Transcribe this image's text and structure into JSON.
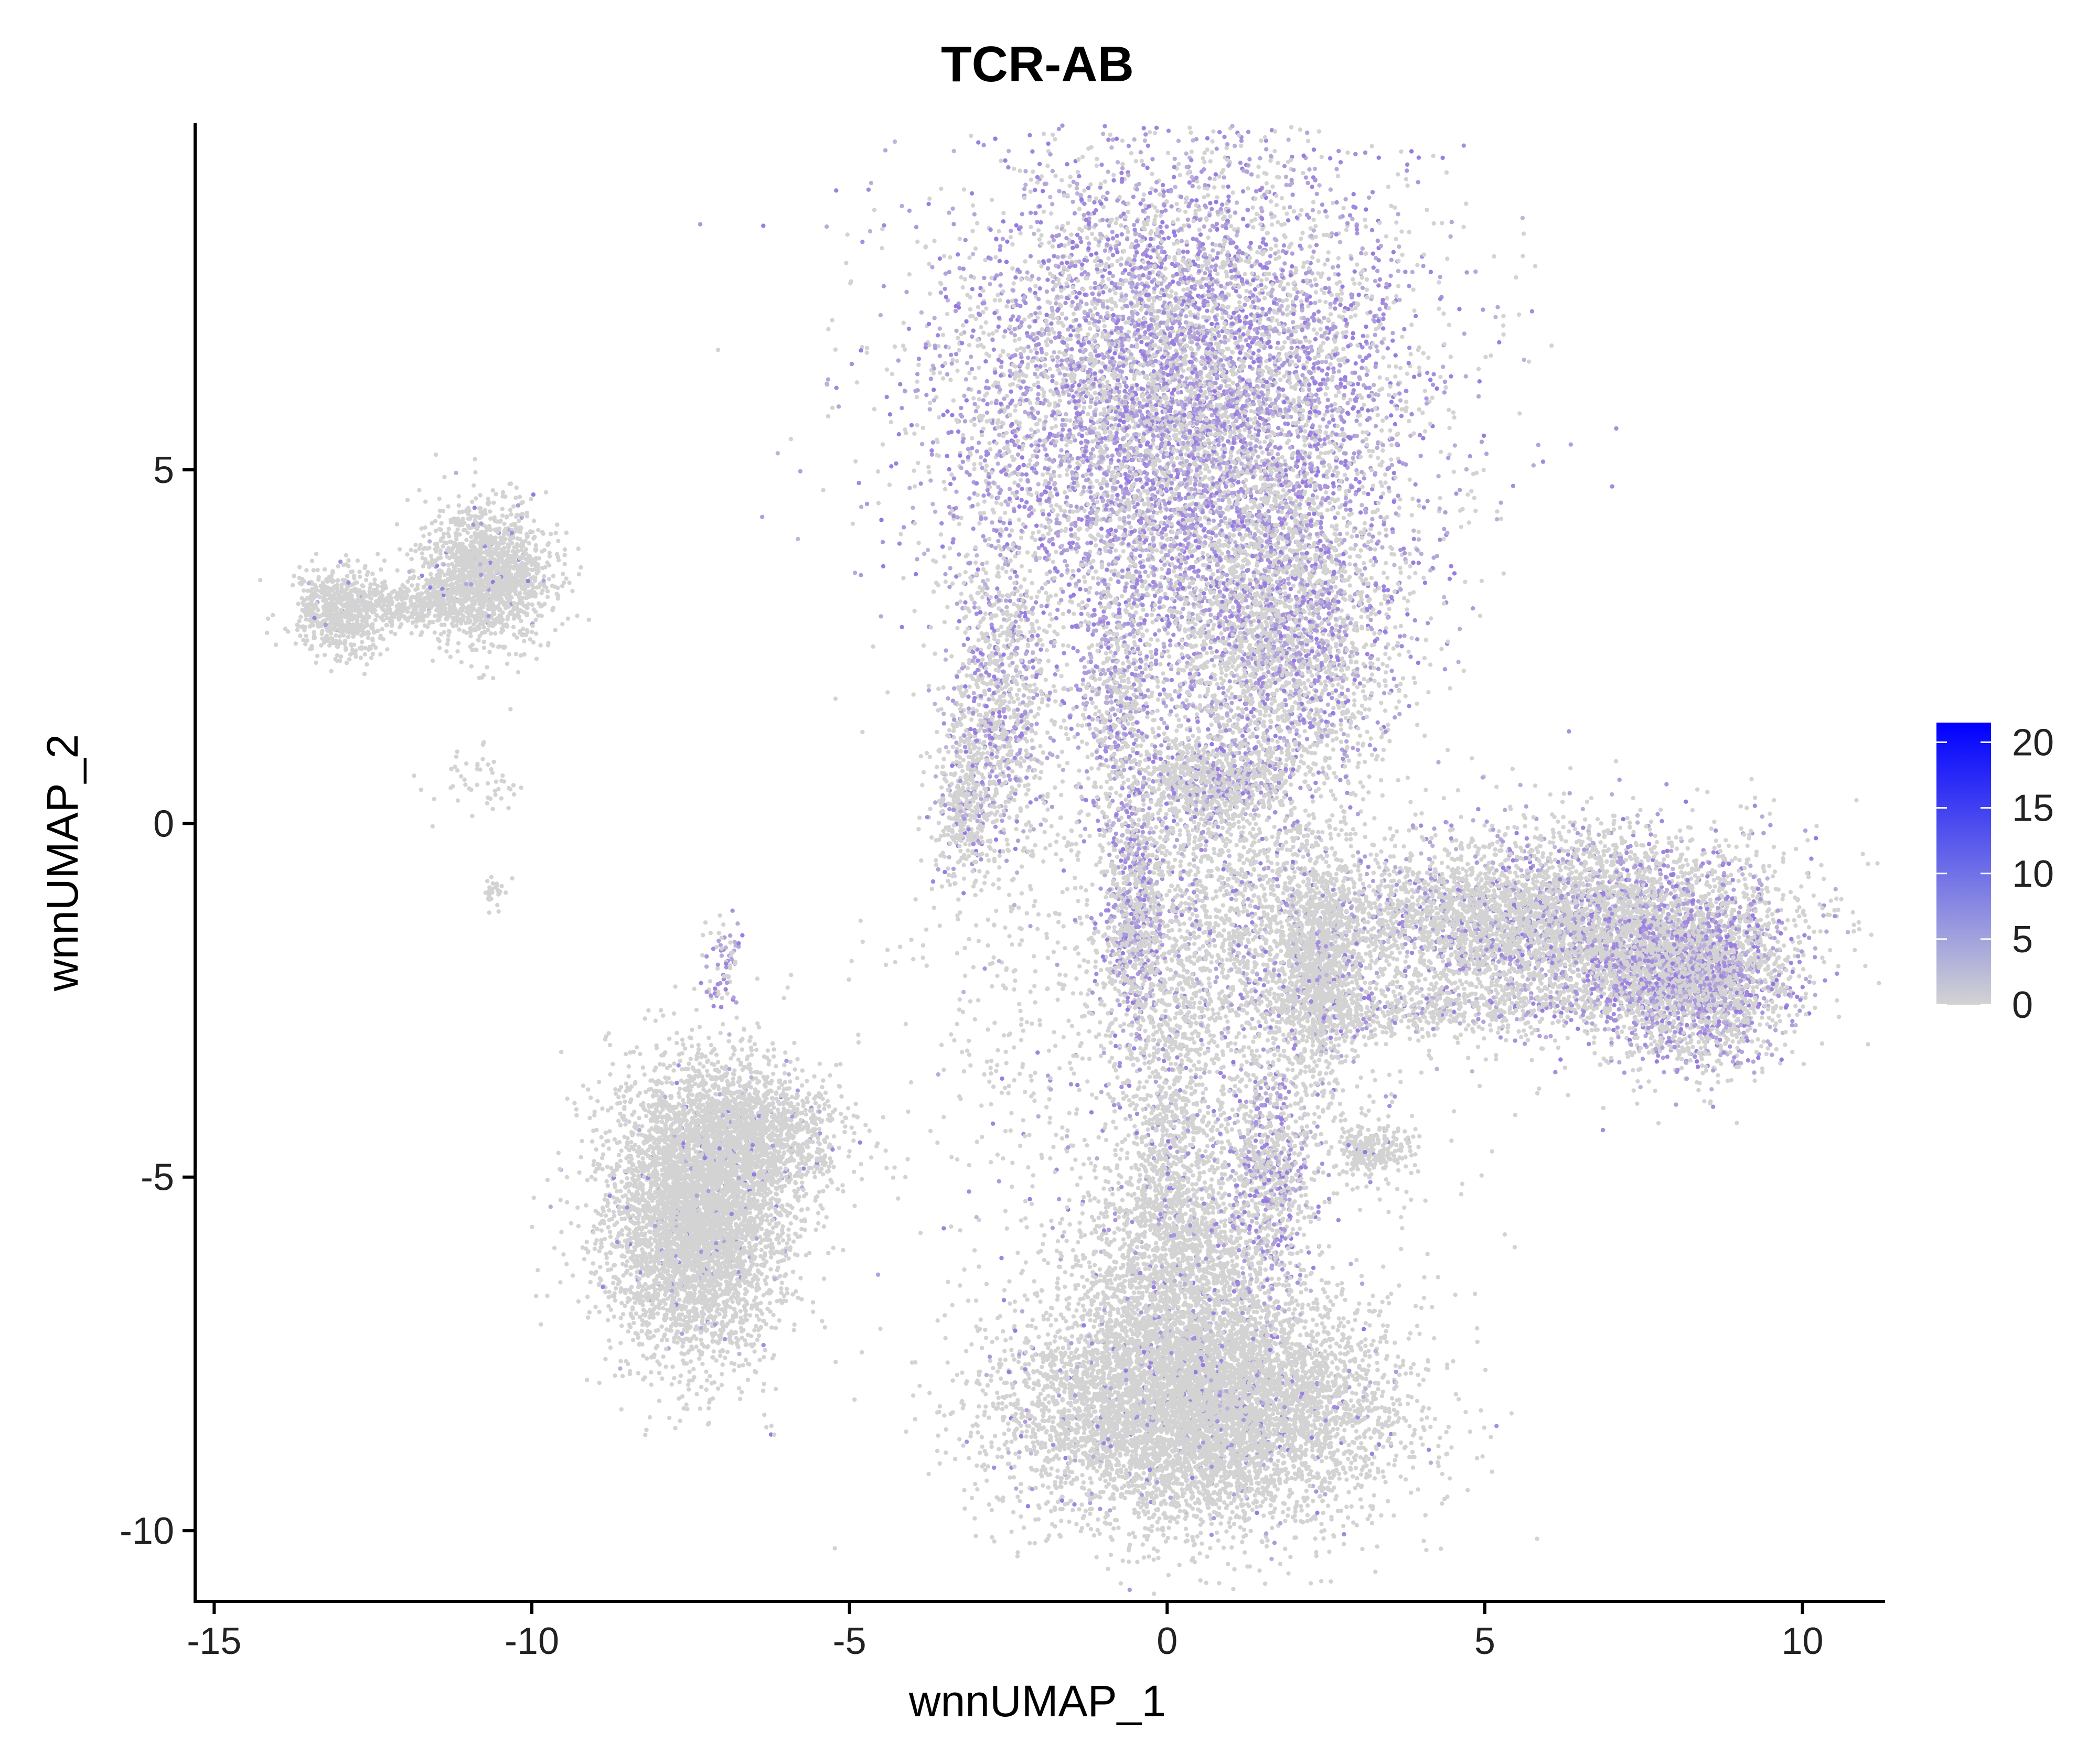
{
  "chart_data": {
    "type": "scatter",
    "title": "TCR-AB",
    "xlabel": "wnnUMAP_1",
    "ylabel": "wnnUMAP_2",
    "xlim": [
      -15.3,
      11.3
    ],
    "ylim": [
      -11.0,
      9.9
    ],
    "x_ticks": [
      -15,
      -10,
      -5,
      0,
      5,
      10
    ],
    "y_ticks": [
      -10,
      -5,
      0,
      5
    ],
    "x_tick_labels": [
      "-15",
      "-10",
      "-5",
      "0",
      "5",
      "10"
    ],
    "y_tick_labels": [
      "-10",
      "-5",
      "0",
      "5"
    ],
    "grid": false,
    "legend": {
      "placement": "right",
      "type": "colorbar",
      "min": 0,
      "max": 21.5,
      "ticks": [
        0,
        5,
        10,
        15,
        20
      ],
      "tick_labels": [
        "0",
        "5",
        "10",
        "15",
        "20"
      ],
      "color_low": "#d3d3d3",
      "color_high": "#0000ff"
    },
    "clusters": [
      {
        "cx": 0.2,
        "cy": 5.8,
        "sx": 1.8,
        "sy": 1.9,
        "n": 9000,
        "expr": 0.55
      },
      {
        "cx": 1.8,
        "cy": 2.6,
        "sx": 0.9,
        "sy": 1.2,
        "n": 2500,
        "expr": 0.35
      },
      {
        "cx": -2.6,
        "cy": 1.6,
        "sx": 0.4,
        "sy": 1.1,
        "n": 900,
        "expr": 0.35
      },
      {
        "cx": -3.2,
        "cy": 0.3,
        "sx": 0.25,
        "sy": 0.6,
        "n": 400,
        "expr": 0.2
      },
      {
        "cx": -0.8,
        "cy": 1.6,
        "sx": 0.3,
        "sy": 0.9,
        "n": 500,
        "expr": 0.45
      },
      {
        "cx": 0.7,
        "cy": 0.6,
        "sx": 0.6,
        "sy": 0.3,
        "n": 700,
        "expr": 0.25
      },
      {
        "cx": -0.5,
        "cy": -1.3,
        "sx": 0.25,
        "sy": 0.9,
        "n": 700,
        "expr": 0.5
      },
      {
        "cx": 0.8,
        "cy": -1.2,
        "sx": 1.0,
        "sy": 1.3,
        "n": 1500,
        "expr": 0.15
      },
      {
        "cx": 2.4,
        "cy": -2.0,
        "sx": 0.35,
        "sy": 0.8,
        "n": 1300,
        "expr": 0.1
      },
      {
        "cx": 6.5,
        "cy": -1.5,
        "sx": 1.6,
        "sy": 0.7,
        "n": 4500,
        "expr": 0.25
      },
      {
        "cx": 8.3,
        "cy": -2.2,
        "sx": 0.7,
        "sy": 0.6,
        "n": 2200,
        "expr": 0.4
      },
      {
        "cx": 4.2,
        "cy": -1.3,
        "sx": 1.2,
        "sy": 0.35,
        "n": 800,
        "expr": 0.1
      },
      {
        "cx": 3.8,
        "cy": -2.6,
        "sx": 1.3,
        "sy": 0.2,
        "n": 500,
        "expr": 0.15
      },
      {
        "cx": 0.5,
        "cy": -8.3,
        "sx": 1.5,
        "sy": 0.8,
        "n": 7000,
        "expr": 0.05
      },
      {
        "cx": 0.2,
        "cy": -6.5,
        "sx": 0.8,
        "sy": 0.9,
        "n": 1800,
        "expr": 0.05
      },
      {
        "cx": 1.6,
        "cy": -5.0,
        "sx": 0.35,
        "sy": 0.9,
        "n": 800,
        "expr": 0.4
      },
      {
        "cx": 0.1,
        "cy": -4.5,
        "sx": 0.35,
        "sy": 1.2,
        "n": 700,
        "expr": 0.1
      },
      {
        "cx": 3.2,
        "cy": -4.6,
        "sx": 0.3,
        "sy": 0.2,
        "n": 250,
        "expr": 0.05
      },
      {
        "cx": -7.4,
        "cy": -5.5,
        "sx": 0.7,
        "sy": 1.0,
        "n": 5000,
        "expr": 0.03
      },
      {
        "cx": -6.5,
        "cy": -4.4,
        "sx": 0.7,
        "sy": 0.45,
        "n": 1200,
        "expr": 0.05
      },
      {
        "cx": -7.0,
        "cy": -2.0,
        "sx": 0.15,
        "sy": 0.35,
        "n": 80,
        "expr": 0.5
      },
      {
        "cx": -10.7,
        "cy": 3.5,
        "sx": 0.5,
        "sy": 0.45,
        "n": 1700,
        "expr": 0.03
      },
      {
        "cx": -13.0,
        "cy": 3.0,
        "sx": 0.35,
        "sy": 0.3,
        "n": 700,
        "expr": 0.02
      },
      {
        "cx": -11.8,
        "cy": 3.1,
        "sx": 0.45,
        "sy": 0.15,
        "n": 300,
        "expr": 0.02
      },
      {
        "cx": -10.8,
        "cy": 0.6,
        "sx": 0.4,
        "sy": 0.3,
        "n": 50,
        "expr": 0.0
      },
      {
        "cx": -10.6,
        "cy": -0.9,
        "sx": 0.1,
        "sy": 0.15,
        "n": 30,
        "expr": 0.0
      },
      {
        "cx": 0.0,
        "cy": -3.0,
        "sx": 2.0,
        "sy": 2.2,
        "n": 1400,
        "expr": 0.08
      }
    ]
  }
}
